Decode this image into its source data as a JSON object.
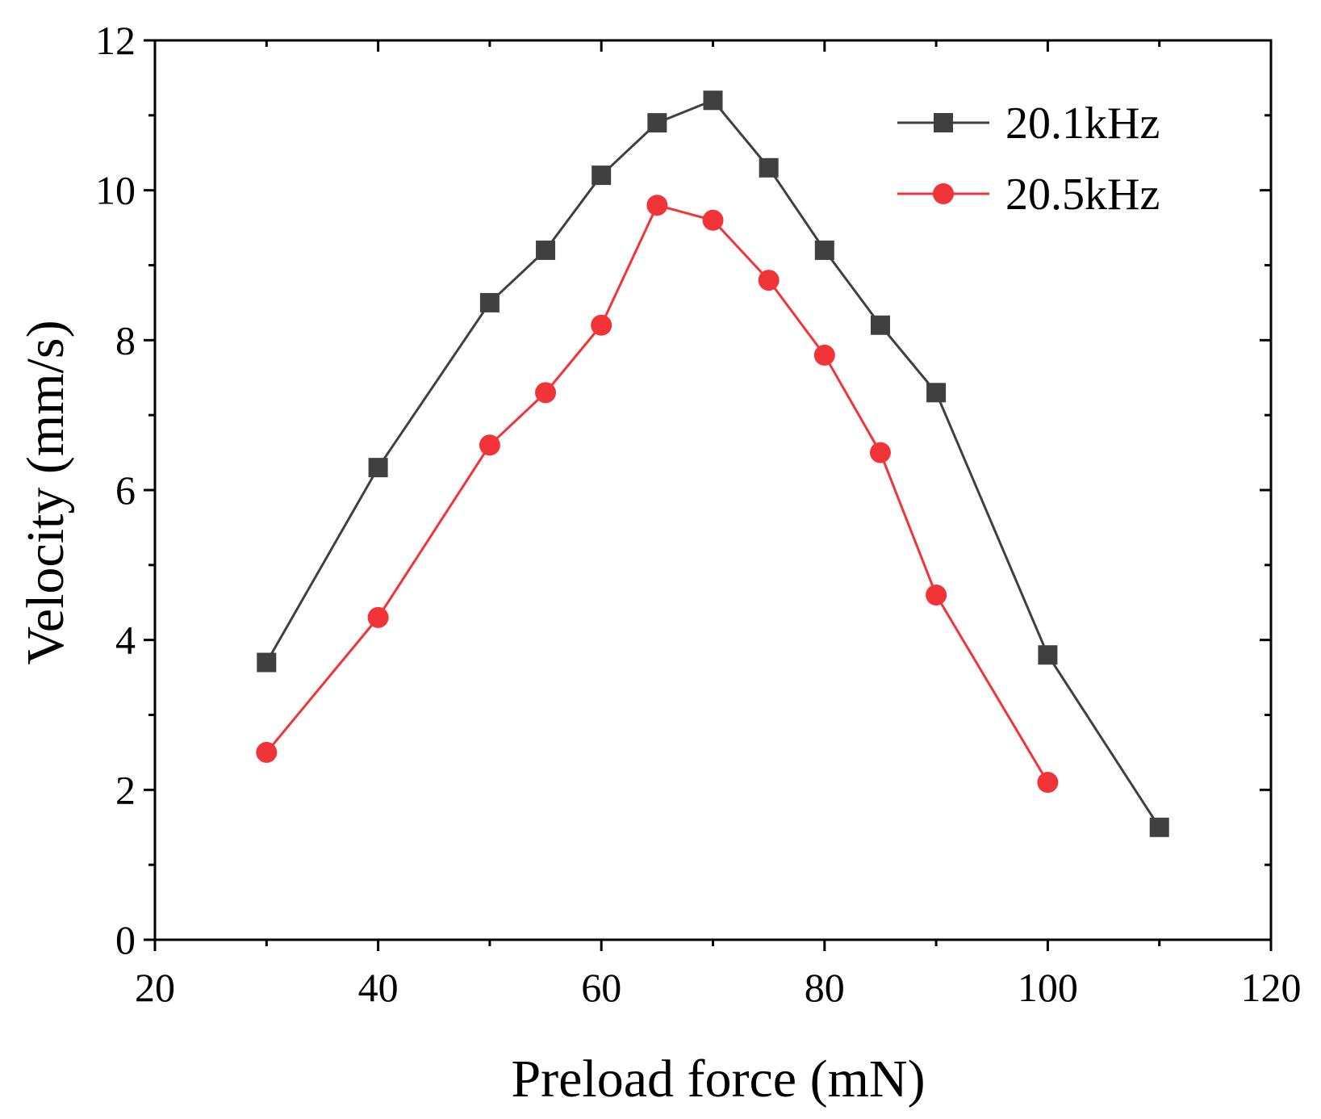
{
  "chart_data": {
    "type": "line",
    "title": "",
    "xlabel": "Preload force (mN)",
    "ylabel": "Velocity (mm/s)",
    "xlim": [
      20,
      120
    ],
    "ylim": [
      0,
      12
    ],
    "xticks": [
      20,
      40,
      60,
      80,
      100,
      120
    ],
    "yticks": [
      0,
      2,
      4,
      6,
      8,
      10,
      12
    ],
    "grid": false,
    "legend_position": "top-right",
    "series": [
      {
        "name": "20.1kHz",
        "color": "#404040",
        "marker": "square",
        "x": [
          30,
          40,
          50,
          55,
          60,
          65,
          70,
          75,
          80,
          85,
          90,
          100,
          110
        ],
        "y": [
          3.7,
          6.3,
          8.5,
          9.2,
          10.2,
          10.9,
          11.2,
          10.3,
          9.2,
          8.2,
          7.3,
          3.8,
          1.5
        ]
      },
      {
        "name": "20.5kHz",
        "color": "#f03438",
        "marker": "circle",
        "x": [
          30,
          40,
          50,
          55,
          60,
          65,
          70,
          75,
          80,
          85,
          90,
          100
        ],
        "y": [
          2.5,
          4.3,
          6.6,
          7.3,
          8.2,
          9.8,
          9.6,
          8.8,
          7.8,
          6.5,
          4.6,
          2.1
        ]
      }
    ]
  }
}
